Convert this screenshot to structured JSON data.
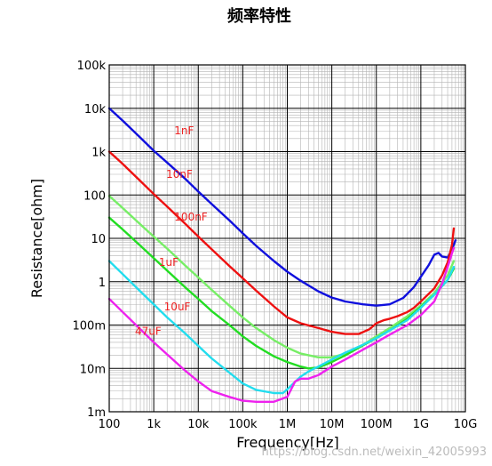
{
  "chart_data": {
    "type": "line",
    "title": "频率特性",
    "xlabel": "Frequency[Hz]",
    "ylabel": "Resistance[ohm]",
    "x_scale": "log",
    "y_scale": "log",
    "xlim": [
      100,
      10000000000
    ],
    "ylim": [
      0.001,
      100000
    ],
    "grid": true,
    "x_ticks": [
      {
        "value": 100,
        "label": "100"
      },
      {
        "value": 1000,
        "label": "1k"
      },
      {
        "value": 10000,
        "label": "10k"
      },
      {
        "value": 100000,
        "label": "100k"
      },
      {
        "value": 1000000,
        "label": "1M"
      },
      {
        "value": 10000000,
        "label": "10M"
      },
      {
        "value": 100000000,
        "label": "100M"
      },
      {
        "value": 1000000000,
        "label": "1G"
      },
      {
        "value": 10000000000,
        "label": "10G"
      }
    ],
    "y_ticks": [
      {
        "value": 0.001,
        "label": "1m"
      },
      {
        "value": 0.01,
        "label": "10m"
      },
      {
        "value": 0.1,
        "label": "100m"
      },
      {
        "value": 1,
        "label": "1"
      },
      {
        "value": 10,
        "label": "10"
      },
      {
        "value": 100,
        "label": "100"
      },
      {
        "value": 1000,
        "label": "1k"
      },
      {
        "value": 10000,
        "label": "10k"
      },
      {
        "value": 100000,
        "label": "100k"
      }
    ],
    "series": [
      {
        "name": "1nF",
        "color": "#1010dd",
        "label_at": [
          2900,
          2500
        ],
        "points": [
          [
            100,
            10000
          ],
          [
            200,
            5200
          ],
          [
            500,
            2100
          ],
          [
            1000,
            1050
          ],
          [
            2000,
            560
          ],
          [
            5000,
            240
          ],
          [
            10000,
            120
          ],
          [
            20000,
            62
          ],
          [
            50000,
            26
          ],
          [
            100000,
            13
          ],
          [
            200000,
            6.7
          ],
          [
            500000,
            3
          ],
          [
            1000000,
            1.7
          ],
          [
            2000000,
            1.05
          ],
          [
            5000000,
            0.6
          ],
          [
            10000000,
            0.43
          ],
          [
            20000000,
            0.35
          ],
          [
            50000000,
            0.3
          ],
          [
            100000000,
            0.28
          ],
          [
            200000000,
            0.3
          ],
          [
            400000000,
            0.42
          ],
          [
            700000000,
            0.75
          ],
          [
            1000000000,
            1.3
          ],
          [
            1500000000,
            2.4
          ],
          [
            2000000000,
            4.2
          ],
          [
            2500000000,
            4.6
          ],
          [
            3000000000,
            3.8
          ],
          [
            4000000000,
            3.6
          ],
          [
            5000000000,
            5.5
          ],
          [
            6000000000,
            9
          ]
        ]
      },
      {
        "name": "10nF",
        "color": "#ee1111",
        "label_at": [
          1900,
          250
        ],
        "points": [
          [
            100,
            1000
          ],
          [
            200,
            520
          ],
          [
            500,
            210
          ],
          [
            1000,
            105
          ],
          [
            2000,
            54
          ],
          [
            5000,
            22
          ],
          [
            10000,
            11
          ],
          [
            20000,
            5.6
          ],
          [
            50000,
            2.3
          ],
          [
            100000,
            1.2
          ],
          [
            200000,
            0.62
          ],
          [
            500000,
            0.27
          ],
          [
            1000000,
            0.15
          ],
          [
            2000000,
            0.11
          ],
          [
            5000000,
            0.085
          ],
          [
            10000000,
            0.07
          ],
          [
            20000000,
            0.062
          ],
          [
            40000000,
            0.062
          ],
          [
            70000000,
            0.08
          ],
          [
            100000000,
            0.11
          ],
          [
            150000000,
            0.13
          ],
          [
            200000000,
            0.14
          ],
          [
            300000000,
            0.16
          ],
          [
            500000000,
            0.2
          ],
          [
            700000000,
            0.25
          ],
          [
            1000000000,
            0.35
          ],
          [
            2000000000,
            0.7
          ],
          [
            3000000000,
            1.4
          ],
          [
            4000000000,
            2.8
          ],
          [
            5000000000,
            7
          ],
          [
            5500000000,
            17
          ]
        ]
      },
      {
        "name": "100nF",
        "color": "#77ee66",
        "label_at": [
          2900,
          26
        ],
        "points": [
          [
            100,
            95
          ],
          [
            200,
            50
          ],
          [
            500,
            21
          ],
          [
            1000,
            11
          ],
          [
            2000,
            5.8
          ],
          [
            5000,
            2.4
          ],
          [
            10000,
            1.25
          ],
          [
            20000,
            0.65
          ],
          [
            50000,
            0.28
          ],
          [
            100000,
            0.15
          ],
          [
            200000,
            0.085
          ],
          [
            500000,
            0.045
          ],
          [
            1000000,
            0.03
          ],
          [
            2000000,
            0.022
          ],
          [
            5000000,
            0.018
          ],
          [
            10000000,
            0.018
          ],
          [
            20000000,
            0.022
          ],
          [
            50000000,
            0.035
          ],
          [
            100000000,
            0.055
          ],
          [
            200000000,
            0.085
          ],
          [
            500000000,
            0.16
          ],
          [
            1000000000,
            0.28
          ],
          [
            2000000000,
            0.55
          ],
          [
            4000000000,
            1.4
          ],
          [
            5500000000,
            3
          ]
        ]
      },
      {
        "name": "1uF",
        "color": "#22dd22",
        "label_at": [
          1300,
          2.3
        ],
        "points": [
          [
            100,
            30
          ],
          [
            200,
            16
          ],
          [
            500,
            6.8
          ],
          [
            1000,
            3.5
          ],
          [
            2000,
            1.8
          ],
          [
            5000,
            0.75
          ],
          [
            10000,
            0.4
          ],
          [
            20000,
            0.21
          ],
          [
            50000,
            0.1
          ],
          [
            100000,
            0.055
          ],
          [
            200000,
            0.033
          ],
          [
            500000,
            0.019
          ],
          [
            1000000,
            0.014
          ],
          [
            2000000,
            0.011
          ],
          [
            3000000,
            0.01
          ],
          [
            5000000,
            0.0105
          ],
          [
            10000000,
            0.014
          ],
          [
            20000000,
            0.02
          ],
          [
            50000000,
            0.034
          ],
          [
            100000000,
            0.05
          ],
          [
            200000000,
            0.075
          ],
          [
            500000000,
            0.14
          ],
          [
            1000000000,
            0.26
          ],
          [
            2000000000,
            0.5
          ],
          [
            4000000000,
            1.1
          ],
          [
            5500000000,
            2
          ]
        ]
      },
      {
        "name": "10uF",
        "color": "#22ddee",
        "label_at": [
          1700,
          0.22
        ],
        "points": [
          [
            100,
            3
          ],
          [
            200,
            1.5
          ],
          [
            500,
            0.6
          ],
          [
            1000,
            0.3
          ],
          [
            2000,
            0.15
          ],
          [
            5000,
            0.065
          ],
          [
            10000,
            0.033
          ],
          [
            20000,
            0.017
          ],
          [
            50000,
            0.008
          ],
          [
            100000,
            0.0045
          ],
          [
            200000,
            0.0032
          ],
          [
            500000,
            0.0027
          ],
          [
            800000,
            0.0027
          ],
          [
            1000000,
            0.0033
          ],
          [
            2000000,
            0.0065
          ],
          [
            3000000,
            0.0085
          ],
          [
            5000000,
            0.011
          ],
          [
            10000000,
            0.016
          ],
          [
            20000000,
            0.023
          ],
          [
            50000000,
            0.035
          ],
          [
            100000000,
            0.05
          ],
          [
            200000000,
            0.075
          ],
          [
            500000000,
            0.13
          ],
          [
            1000000000,
            0.25
          ],
          [
            2000000000,
            0.5
          ],
          [
            4000000000,
            1.1
          ],
          [
            5500000000,
            2.2
          ]
        ]
      },
      {
        "name": "47uF",
        "color": "#ee22ee",
        "label_at": [
          380,
          0.06
        ],
        "points": [
          [
            100,
            0.4
          ],
          [
            200,
            0.2
          ],
          [
            500,
            0.08
          ],
          [
            1000,
            0.04
          ],
          [
            2000,
            0.021
          ],
          [
            5000,
            0.009
          ],
          [
            10000,
            0.005
          ],
          [
            20000,
            0.003
          ],
          [
            50000,
            0.0022
          ],
          [
            100000,
            0.0018
          ],
          [
            200000,
            0.0017
          ],
          [
            500000,
            0.0017
          ],
          [
            1000000,
            0.0022
          ],
          [
            1500000,
            0.005
          ],
          [
            2000000,
            0.0058
          ],
          [
            3000000,
            0.0058
          ],
          [
            5000000,
            0.007
          ],
          [
            10000000,
            0.011
          ],
          [
            20000000,
            0.016
          ],
          [
            50000000,
            0.027
          ],
          [
            100000000,
            0.04
          ],
          [
            200000000,
            0.06
          ],
          [
            500000000,
            0.1
          ],
          [
            1000000000,
            0.17
          ],
          [
            2000000000,
            0.35
          ],
          [
            3000000000,
            0.9
          ],
          [
            4000000000,
            2.2
          ],
          [
            5000000000,
            4.5
          ],
          [
            5500000000,
            6
          ]
        ]
      }
    ]
  },
  "watermark": "https://blog.csdn.net/weixin_42005993"
}
